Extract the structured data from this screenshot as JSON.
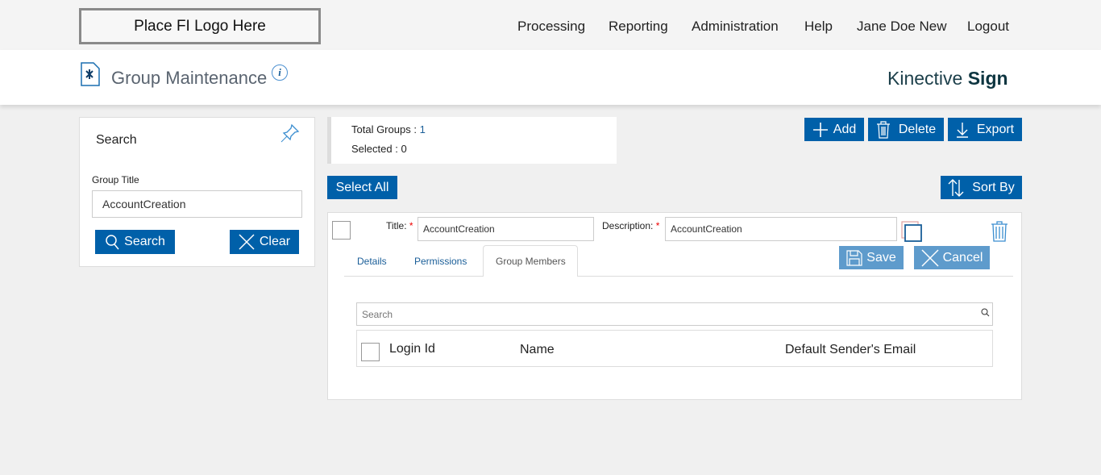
{
  "topbar": {
    "logo": "Place FI Logo Here",
    "nav": [
      "Processing",
      "Reporting",
      "Administration",
      "Help",
      "Jane Doe New",
      "Logout"
    ]
  },
  "header": {
    "title": "Group Maintenance",
    "brand_light": "Kinective",
    "brand_bold": "Sign"
  },
  "search_panel": {
    "heading": "Search",
    "group_title_label": "Group Title",
    "group_title_value": "AccountCreation",
    "search_label": "Search",
    "clear_label": "Clear"
  },
  "summary": {
    "total_label": "Total Groups :",
    "total_value": "1",
    "selected_label": "Selected :",
    "selected_value": "0"
  },
  "toolbar": {
    "add": "Add",
    "delete": "Delete",
    "export": "Export",
    "select_all": "Select All",
    "sort_by": "Sort By"
  },
  "group": {
    "title_label": "Title:",
    "title_value": "AccountCreation",
    "desc_label": "Description:",
    "desc_value": "AccountCreation",
    "required_mark": "*",
    "save": "Save",
    "cancel": "Cancel",
    "tabs": [
      "Details",
      "Permissions",
      "Group Members"
    ],
    "active_tab": "Group Members",
    "members": {
      "search_placeholder": "Search",
      "columns": [
        "Login Id",
        "Name",
        "Default Sender's Email"
      ]
    }
  },
  "colors": {
    "primary": "#0060a9",
    "primary_disabled": "#5e9bcc",
    "background": "#f0f0f0"
  }
}
